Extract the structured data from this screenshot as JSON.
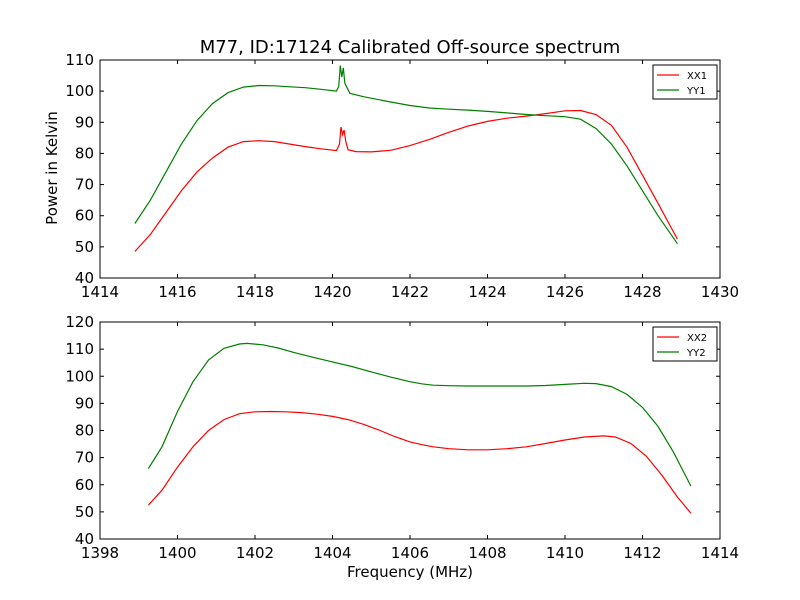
{
  "figure": {
    "title": "M77, ID:17124 Calibrated Off-source spectrum",
    "ylabel": "Power in Kelvin",
    "xlabel": "Frequency (MHz)"
  },
  "colors": {
    "xx": "#ff0000",
    "yy": "#007f00",
    "axis": "#000000"
  },
  "chart_data": [
    {
      "type": "line",
      "xlim": [
        1414,
        1430
      ],
      "ylim": [
        40,
        110
      ],
      "xticks": [
        1414,
        1416,
        1418,
        1420,
        1422,
        1424,
        1426,
        1428,
        1430
      ],
      "yticks": [
        40,
        50,
        60,
        70,
        80,
        90,
        100,
        110
      ],
      "grid": false,
      "legend_position": "top-right",
      "series": [
        {
          "name": "XX1",
          "color": "#ff0000",
          "points": [
            [
              1414.9,
              48.5
            ],
            [
              1415.3,
              54
            ],
            [
              1415.7,
              61
            ],
            [
              1416.1,
              68
            ],
            [
              1416.5,
              74
            ],
            [
              1416.9,
              78.5
            ],
            [
              1417.3,
              82
            ],
            [
              1417.7,
              83.8
            ],
            [
              1418.1,
              84.1
            ],
            [
              1418.5,
              83.8
            ],
            [
              1418.9,
              83
            ],
            [
              1419.3,
              82.2
            ],
            [
              1419.7,
              81.5
            ],
            [
              1420.1,
              80.9
            ],
            [
              1420.18,
              83
            ],
            [
              1420.22,
              88.5
            ],
            [
              1420.26,
              86
            ],
            [
              1420.3,
              87.5
            ],
            [
              1420.34,
              84
            ],
            [
              1420.4,
              81.2
            ],
            [
              1420.6,
              80.6
            ],
            [
              1421.0,
              80.5
            ],
            [
              1421.5,
              81
            ],
            [
              1422.0,
              82.5
            ],
            [
              1422.5,
              84.5
            ],
            [
              1423.0,
              86.8
            ],
            [
              1423.5,
              88.8
            ],
            [
              1424.0,
              90.3
            ],
            [
              1424.5,
              91.3
            ],
            [
              1425.0,
              92
            ],
            [
              1425.5,
              92.8
            ],
            [
              1426.0,
              93.7
            ],
            [
              1426.4,
              93.8
            ],
            [
              1426.8,
              92.5
            ],
            [
              1427.2,
              89
            ],
            [
              1427.6,
              82
            ],
            [
              1428.0,
              73
            ],
            [
              1428.4,
              64
            ],
            [
              1428.9,
              52.5
            ]
          ]
        },
        {
          "name": "YY1",
          "color": "#007f00",
          "points": [
            [
              1414.9,
              57.5
            ],
            [
              1415.3,
              65
            ],
            [
              1415.7,
              74
            ],
            [
              1416.1,
              83
            ],
            [
              1416.5,
              90.5
            ],
            [
              1416.9,
              96
            ],
            [
              1417.3,
              99.5
            ],
            [
              1417.7,
              101.3
            ],
            [
              1418.1,
              101.8
            ],
            [
              1418.5,
              101.7
            ],
            [
              1418.9,
              101.4
            ],
            [
              1419.3,
              101.1
            ],
            [
              1419.7,
              100.6
            ],
            [
              1420.1,
              100
            ],
            [
              1420.16,
              101.5
            ],
            [
              1420.2,
              108.2
            ],
            [
              1420.24,
              104.5
            ],
            [
              1420.28,
              107.5
            ],
            [
              1420.32,
              102.5
            ],
            [
              1420.45,
              99.3
            ],
            [
              1420.8,
              98.2
            ],
            [
              1421.5,
              96.5
            ],
            [
              1422.0,
              95.4
            ],
            [
              1422.5,
              94.6
            ],
            [
              1423.0,
              94.2
            ],
            [
              1423.5,
              93.9
            ],
            [
              1424.0,
              93.5
            ],
            [
              1424.5,
              93
            ],
            [
              1425.0,
              92.5
            ],
            [
              1425.5,
              92.1
            ],
            [
              1426.0,
              91.8
            ],
            [
              1426.4,
              91
            ],
            [
              1426.8,
              88
            ],
            [
              1427.2,
              83
            ],
            [
              1427.6,
              76
            ],
            [
              1428.0,
              68
            ],
            [
              1428.4,
              60
            ],
            [
              1428.9,
              51
            ]
          ]
        }
      ]
    },
    {
      "type": "line",
      "xlim": [
        1398,
        1414
      ],
      "ylim": [
        40,
        120
      ],
      "xticks": [
        1398,
        1400,
        1402,
        1404,
        1406,
        1408,
        1410,
        1412,
        1414
      ],
      "yticks": [
        40,
        50,
        60,
        70,
        80,
        90,
        100,
        110,
        120
      ],
      "grid": false,
      "legend_position": "top-right",
      "series": [
        {
          "name": "XX2",
          "color": "#ff0000",
          "points": [
            [
              1399.25,
              52.5
            ],
            [
              1399.6,
              58
            ],
            [
              1400.0,
              66.5
            ],
            [
              1400.4,
              74
            ],
            [
              1400.8,
              80
            ],
            [
              1401.2,
              84
            ],
            [
              1401.6,
              86.2
            ],
            [
              1402.0,
              86.9
            ],
            [
              1402.4,
              87
            ],
            [
              1402.8,
              86.9
            ],
            [
              1403.2,
              86.6
            ],
            [
              1403.6,
              86
            ],
            [
              1404.0,
              85.2
            ],
            [
              1404.4,
              84
            ],
            [
              1404.8,
              82.3
            ],
            [
              1405.2,
              80.2
            ],
            [
              1405.6,
              77.8
            ],
            [
              1406.0,
              75.8
            ],
            [
              1406.3,
              74.8
            ],
            [
              1406.6,
              74
            ],
            [
              1407.0,
              73.3
            ],
            [
              1407.5,
              72.9
            ],
            [
              1408.0,
              72.9
            ],
            [
              1408.5,
              73.3
            ],
            [
              1409.0,
              74
            ],
            [
              1409.5,
              75.2
            ],
            [
              1410.0,
              76.5
            ],
            [
              1410.5,
              77.6
            ],
            [
              1411.0,
              78
            ],
            [
              1411.3,
              77.6
            ],
            [
              1411.7,
              75.2
            ],
            [
              1412.1,
              70.5
            ],
            [
              1412.5,
              63.5
            ],
            [
              1412.9,
              55.5
            ],
            [
              1413.25,
              49.5
            ]
          ]
        },
        {
          "name": "YY2",
          "color": "#007f00",
          "points": [
            [
              1399.25,
              66
            ],
            [
              1399.6,
              74
            ],
            [
              1400.0,
              87
            ],
            [
              1400.4,
              98
            ],
            [
              1400.8,
              106
            ],
            [
              1401.2,
              110.3
            ],
            [
              1401.6,
              111.9
            ],
            [
              1401.8,
              112.1
            ],
            [
              1402.2,
              111.6
            ],
            [
              1402.6,
              110.4
            ],
            [
              1403.0,
              108.8
            ],
            [
              1403.5,
              107
            ],
            [
              1404.0,
              105.3
            ],
            [
              1404.5,
              103.6
            ],
            [
              1405.0,
              101.6
            ],
            [
              1405.5,
              99.7
            ],
            [
              1406.0,
              98
            ],
            [
              1406.3,
              97.2
            ],
            [
              1406.6,
              96.7
            ],
            [
              1407.0,
              96.5
            ],
            [
              1407.5,
              96.4
            ],
            [
              1408.0,
              96.4
            ],
            [
              1408.5,
              96.4
            ],
            [
              1409.0,
              96.4
            ],
            [
              1409.5,
              96.6
            ],
            [
              1410.0,
              97
            ],
            [
              1410.5,
              97.4
            ],
            [
              1410.8,
              97.3
            ],
            [
              1411.2,
              96.2
            ],
            [
              1411.6,
              93.3
            ],
            [
              1412.0,
              88.5
            ],
            [
              1412.4,
              81.5
            ],
            [
              1412.8,
              72
            ],
            [
              1413.25,
              59.5
            ]
          ]
        }
      ]
    }
  ]
}
